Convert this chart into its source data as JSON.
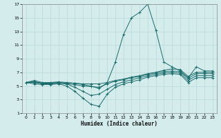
{
  "xlabel": "Humidex (Indice chaleur)",
  "background_color": "#d4ecec",
  "grid_color": "#b8d8d8",
  "line_color": "#1a6b6b",
  "xlim": [
    -0.5,
    23.5
  ],
  "ylim": [
    1,
    17
  ],
  "xticks": [
    0,
    1,
    2,
    3,
    4,
    5,
    6,
    7,
    8,
    9,
    10,
    11,
    12,
    13,
    14,
    15,
    16,
    17,
    18,
    19,
    20,
    21,
    22,
    23
  ],
  "yticks": [
    1,
    3,
    5,
    7,
    9,
    11,
    13,
    15,
    17
  ],
  "lines": [
    {
      "x": [
        0,
        1,
        2,
        3,
        4,
        5,
        6,
        7,
        8,
        9,
        10,
        11,
        12,
        13,
        14,
        15,
        16,
        17,
        18,
        19,
        20,
        21,
        22,
        23
      ],
      "y": [
        5.5,
        5.8,
        5.5,
        5.5,
        5.6,
        5.5,
        5.4,
        5.2,
        5.0,
        4.6,
        5.5,
        8.5,
        12.5,
        15.0,
        15.8,
        17.0,
        13.2,
        8.5,
        7.8,
        7.2,
        6.2,
        7.8,
        7.2,
        7.2
      ]
    },
    {
      "x": [
        0,
        1,
        2,
        3,
        4,
        5,
        6,
        7,
        8,
        9,
        10,
        11,
        12,
        13,
        14,
        15,
        16,
        17,
        18,
        19,
        20,
        21,
        22,
        23
      ],
      "y": [
        5.5,
        5.6,
        5.4,
        5.4,
        5.5,
        5.4,
        5.4,
        5.3,
        5.3,
        5.3,
        5.5,
        5.8,
        6.0,
        6.3,
        6.5,
        6.8,
        7.0,
        7.3,
        7.5,
        7.4,
        6.4,
        7.0,
        7.0,
        7.0
      ]
    },
    {
      "x": [
        0,
        1,
        2,
        3,
        4,
        5,
        6,
        7,
        8,
        9,
        10,
        11,
        12,
        13,
        14,
        15,
        16,
        17,
        18,
        19,
        20,
        21,
        22,
        23
      ],
      "y": [
        5.5,
        5.6,
        5.4,
        5.4,
        5.5,
        5.3,
        5.2,
        5.0,
        4.9,
        4.8,
        5.3,
        5.7,
        5.9,
        6.2,
        6.4,
        6.7,
        6.9,
        7.1,
        7.2,
        7.1,
        6.1,
        6.8,
        6.8,
        6.8
      ]
    },
    {
      "x": [
        0,
        1,
        2,
        3,
        4,
        5,
        6,
        7,
        8,
        9,
        10,
        11,
        12,
        13,
        14,
        15,
        16,
        17,
        18,
        19,
        20,
        21,
        22,
        23
      ],
      "y": [
        5.5,
        5.5,
        5.3,
        5.3,
        5.4,
        5.3,
        4.8,
        4.2,
        3.6,
        3.8,
        4.5,
        5.2,
        5.6,
        5.9,
        6.2,
        6.5,
        6.7,
        6.9,
        7.0,
        6.9,
        5.8,
        6.5,
        6.5,
        6.5
      ]
    },
    {
      "x": [
        0,
        1,
        2,
        3,
        4,
        5,
        6,
        7,
        8,
        9,
        10,
        11,
        12,
        13,
        14,
        15,
        16,
        17,
        18,
        19,
        20,
        21,
        22,
        23
      ],
      "y": [
        5.5,
        5.3,
        5.2,
        5.2,
        5.3,
        5.0,
        4.2,
        3.2,
        2.3,
        2.0,
        3.8,
        4.8,
        5.3,
        5.6,
        5.9,
        6.3,
        6.5,
        6.7,
        6.8,
        6.7,
        5.5,
        6.2,
        6.2,
        6.2
      ]
    }
  ]
}
